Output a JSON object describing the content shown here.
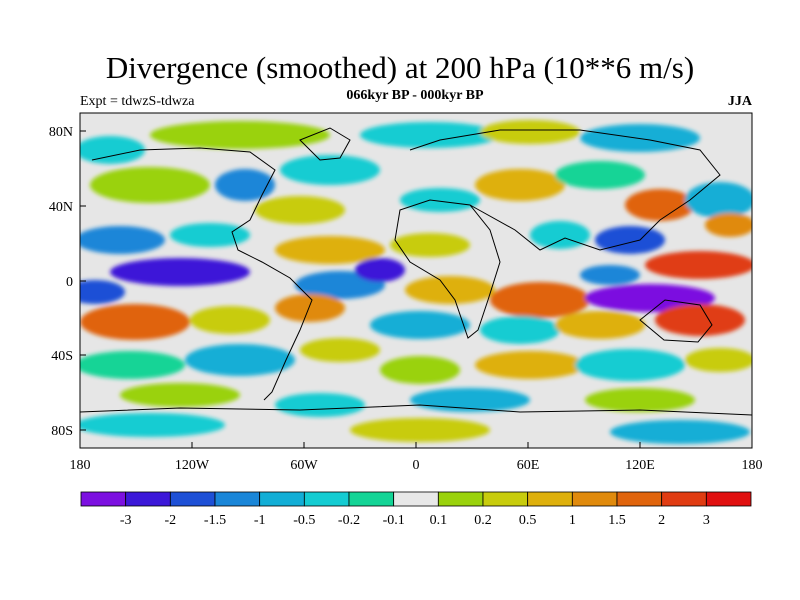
{
  "title": "Divergence (smoothed) at 200 hPa (10**6 m/s)",
  "subtitle": "066kyr BP - 000kyr BP",
  "experiment": "Expt = tdwzS-tdwza",
  "season": "JJA",
  "map": {
    "x_ticks": [
      "180",
      "120W",
      "60W",
      "0",
      "60E",
      "120E",
      "180"
    ],
    "y_ticks": [
      "80N",
      "40N",
      "0",
      "40S",
      "80S"
    ],
    "background": "#e6e6e6"
  },
  "colorbar": {
    "labels": [
      "-3",
      "-2",
      "-1.5",
      "-1",
      "-0.5",
      "-0.2",
      "-0.1",
      "0.1",
      "0.2",
      "0.5",
      "1",
      "1.5",
      "2",
      "3"
    ],
    "colors": [
      "#7c10e0",
      "#3c18d8",
      "#1e50d6",
      "#1a86d8",
      "#12aed6",
      "#14ccd2",
      "#14d496",
      "#e8e8e8",
      "#9ad20c",
      "#c8cc0c",
      "#deb00c",
      "#e08a0c",
      "#e0640c",
      "#e03c12",
      "#e01010"
    ]
  }
}
